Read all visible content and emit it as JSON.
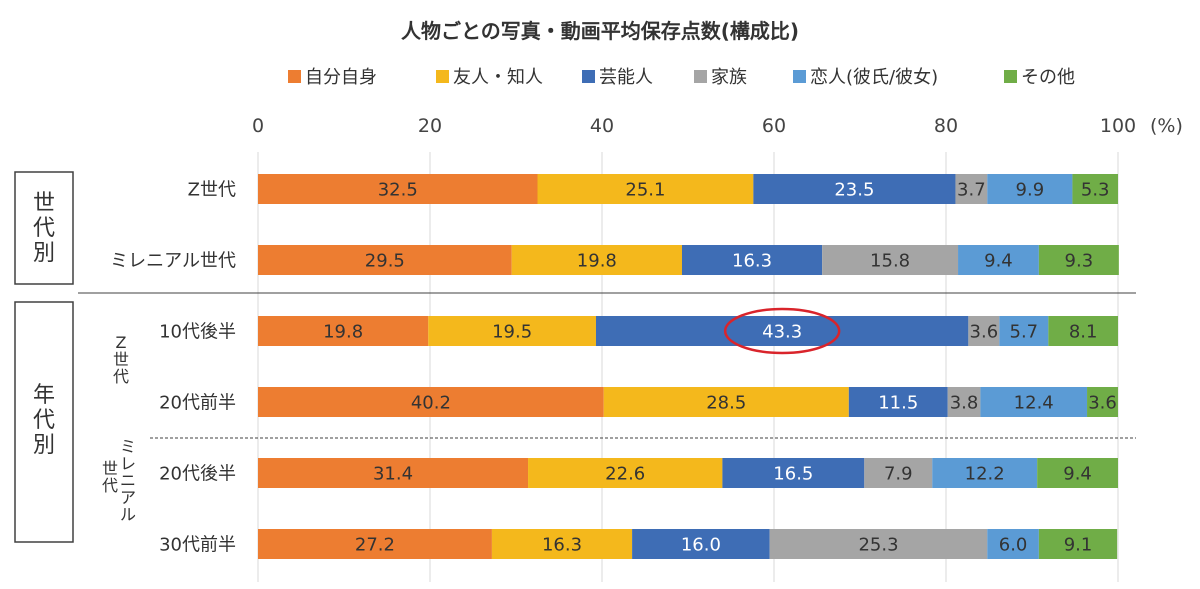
{
  "chart_data": {
    "type": "bar",
    "orientation": "horizontal",
    "stacked": true,
    "title": "人物ごとの写真・動画平均保存点数(構成比)",
    "unit_label": "(%)",
    "xlim": [
      0,
      100
    ],
    "xticks": [
      0,
      20,
      40,
      60,
      80,
      100
    ],
    "grid": true,
    "legend_position": "top",
    "categories": [
      "Z世代",
      "ミレニアル世代",
      "10代後半",
      "20代前半",
      "20代後半",
      "30代前半"
    ],
    "series": [
      {
        "name": "自分自身",
        "color": "#ED7D31",
        "values": [
          32.5,
          29.5,
          19.8,
          40.2,
          31.4,
          27.2
        ]
      },
      {
        "name": "友人・知人",
        "color": "#F4B81C",
        "values": [
          25.1,
          19.8,
          19.5,
          28.5,
          22.6,
          16.3
        ]
      },
      {
        "name": "芸能人",
        "color": "#3E6DB5",
        "values": [
          23.5,
          16.3,
          43.3,
          11.5,
          16.5,
          16.0
        ]
      },
      {
        "name": "家族",
        "color": "#A5A5A5",
        "values": [
          3.7,
          15.8,
          3.6,
          3.8,
          7.9,
          25.3
        ]
      },
      {
        "name": "恋人(彼氏/彼女)",
        "color": "#5B9BD5",
        "values": [
          9.9,
          9.4,
          5.7,
          12.4,
          12.2,
          6.0
        ]
      },
      {
        "name": "その他",
        "color": "#70AD47",
        "values": [
          5.3,
          9.3,
          8.1,
          3.6,
          9.4,
          9.1
        ]
      }
    ],
    "groups": [
      {
        "label": "世代別",
        "rows": [
          0,
          1
        ]
      },
      {
        "label": "年代別",
        "rows": [
          2,
          3,
          4,
          5
        ]
      }
    ],
    "subgroups": [
      {
        "label": "Z世代",
        "rows": [
          2,
          3
        ]
      },
      {
        "label": "ミレニアル世代",
        "rows": [
          4,
          5
        ]
      }
    ],
    "highlight": {
      "row": 2,
      "series": 2,
      "color": "#D9242B"
    },
    "label_colors": {
      "dark": "#333333",
      "light": "#ffffff"
    },
    "light_label_series": [
      2
    ]
  }
}
